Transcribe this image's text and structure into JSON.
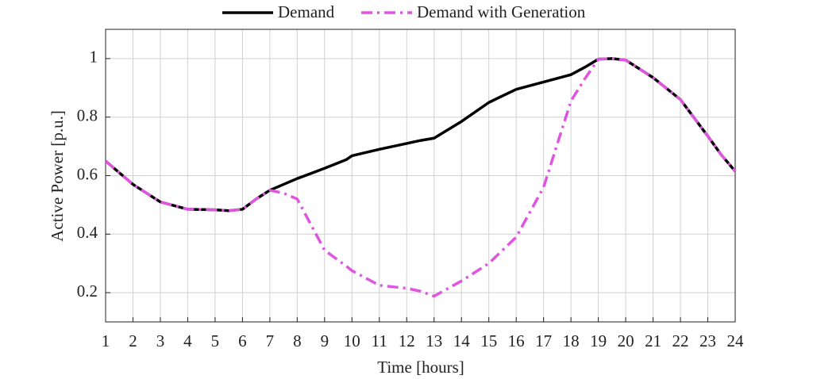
{
  "chart_data": {
    "type": "line",
    "xlabel": "Time [hours]",
    "ylabel": "Active Power [p.u.]",
    "x": [
      1,
      2,
      3,
      4,
      5,
      5.5,
      6,
      6.5,
      7,
      7.5,
      8,
      9,
      9.8,
      10,
      11,
      12,
      12.5,
      13,
      14,
      15,
      16,
      17,
      18,
      18.5,
      19,
      19.5,
      20,
      21,
      22,
      23,
      23.5,
      24
    ],
    "series": [
      {
        "name": "Demand",
        "color": "#000000",
        "style": "solid",
        "values": [
          0.65,
          0.57,
          0.51,
          0.485,
          0.483,
          0.48,
          0.485,
          0.52,
          0.55,
          0.57,
          0.59,
          0.625,
          0.655,
          0.668,
          0.69,
          0.71,
          0.72,
          0.728,
          0.785,
          0.85,
          0.895,
          0.92,
          0.945,
          0.97,
          0.998,
          1.0,
          0.995,
          0.935,
          0.86,
          0.735,
          0.67,
          0.615
        ]
      },
      {
        "name": "Demand with Generation",
        "color": "#e055e0",
        "style": "dashdot",
        "values": [
          0.65,
          0.57,
          0.51,
          0.485,
          0.483,
          0.48,
          0.485,
          0.52,
          0.55,
          0.54,
          0.52,
          0.345,
          0.29,
          0.275,
          0.225,
          0.215,
          0.205,
          0.188,
          0.24,
          0.3,
          0.39,
          0.56,
          0.855,
          0.93,
          0.998,
          1.0,
          0.995,
          0.935,
          0.86,
          0.735,
          0.67,
          0.615
        ]
      }
    ],
    "xlim": [
      1,
      24
    ],
    "xticks": [
      1,
      2,
      3,
      4,
      5,
      6,
      7,
      8,
      9,
      10,
      11,
      12,
      13,
      14,
      15,
      16,
      17,
      18,
      19,
      20,
      21,
      22,
      23,
      24
    ],
    "ylim": [
      0.1,
      1.1
    ],
    "yticks": [
      0.2,
      0.4,
      0.6,
      0.8,
      1
    ],
    "grid": true,
    "legend": "top"
  }
}
